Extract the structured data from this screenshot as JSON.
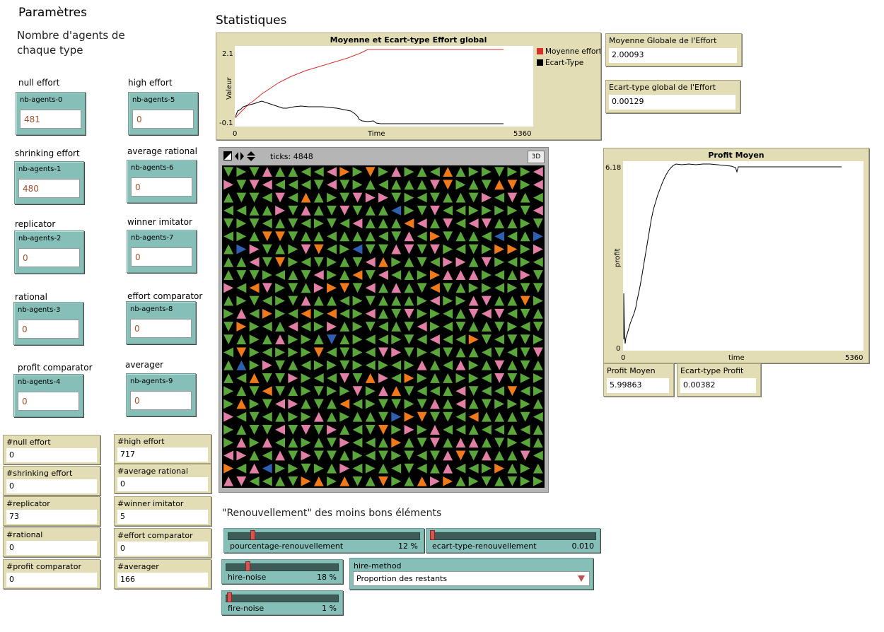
{
  "headers": {
    "parametres": "Paramètres",
    "agents_note": "Nombre d'agents de\nchaque type",
    "statistiques": "Statistiques",
    "renouvellement": "\"Renouvellement\" des moins bons éléments"
  },
  "agent_types": [
    {
      "type_label": "null effort",
      "input_name": "nb-agents-0",
      "value": "481"
    },
    {
      "type_label": "high effort",
      "input_name": "nb-agents-5",
      "value": "0"
    },
    {
      "type_label": "shrinking effort",
      "input_name": "nb-agents-1",
      "value": "480"
    },
    {
      "type_label": "average rational",
      "input_name": "nb-agents-6",
      "value": "0"
    },
    {
      "type_label": "replicator",
      "input_name": "nb-agents-2",
      "value": "0"
    },
    {
      "type_label": "winner imitator",
      "input_name": "nb-agents-7",
      "value": "0"
    },
    {
      "type_label": "rational",
      "input_name": "nb-agents-3",
      "value": "0"
    },
    {
      "type_label": "effort comparator",
      "input_name": "nb-agents-8",
      "value": "0"
    },
    {
      "type_label": "profit comparator",
      "input_name": "nb-agents-4",
      "value": "0"
    },
    {
      "type_label": "averager",
      "input_name": "nb-agents-9",
      "value": "0"
    }
  ],
  "counts": [
    {
      "name": "#null effort",
      "value": "0"
    },
    {
      "name": "#high effort",
      "value": "717"
    },
    {
      "name": "#shrinking effort",
      "value": "0"
    },
    {
      "name": "#average rational",
      "value": "0"
    },
    {
      "name": "#replicator",
      "value": "73"
    },
    {
      "name": "#winner imitator",
      "value": "5"
    },
    {
      "name": "#rational",
      "value": "0"
    },
    {
      "name": "#effort comparator",
      "value": "0"
    },
    {
      "name": "#profit comparator",
      "value": "0"
    },
    {
      "name": "#averager",
      "value": "166"
    }
  ],
  "effort_plot": {
    "title": "Moyenne et Ecart-type Effort global",
    "ylabel": "Valeur",
    "xlabel": "Time",
    "ymax_label": "2.1",
    "ymin_label": "-0.1",
    "xmin_label": "0",
    "xmax_label": "5360",
    "legend": [
      {
        "name": "Moyenne effort",
        "color": "#d7302a"
      },
      {
        "name": "Ecart-Type",
        "color": "#000000"
      }
    ]
  },
  "profit_plot": {
    "title": "Profit Moyen",
    "ylabel": "profit",
    "xlabel": "time",
    "ymax_label": "6.18",
    "ymin_label": "0",
    "xmin_label": "0",
    "xmax_label": "5360"
  },
  "monitors": {
    "moyenne_globale": {
      "name": "Moyenne Globale de l'Effort",
      "value": "2.00093"
    },
    "ecart_type_global": {
      "name": "Ecart-type global de l'Effort",
      "value": "0.00129"
    },
    "profit_moyen": {
      "name": "Profit Moyen",
      "value": "5.99863"
    },
    "ecart_type_profit": {
      "name": "Ecart-type Profit",
      "value": "0.00382"
    }
  },
  "world": {
    "ticks_label": "ticks: 4848",
    "btn_3d": "3D",
    "colors": {
      "green": "#5aa63a",
      "pink": "#e17fa6",
      "orange": "#f07a1a",
      "blue": "#2e5fb0",
      "background": "#000000"
    }
  },
  "sliders": {
    "pourcentage": {
      "name": "pourcentage-renouvellement",
      "value": "12 %",
      "fraction": 0.12
    },
    "ecart_type": {
      "name": "ecart-type-renouvellement",
      "value": "0.010",
      "fraction": 0.0
    },
    "hire_noise": {
      "name": "hire-noise",
      "value": "18 %",
      "fraction": 0.18
    },
    "fire_noise": {
      "name": "fire-noise",
      "value": "1 %",
      "fraction": 0.01
    }
  },
  "chooser": {
    "name": "hire-method",
    "selected": "Proportion des restants"
  }
}
